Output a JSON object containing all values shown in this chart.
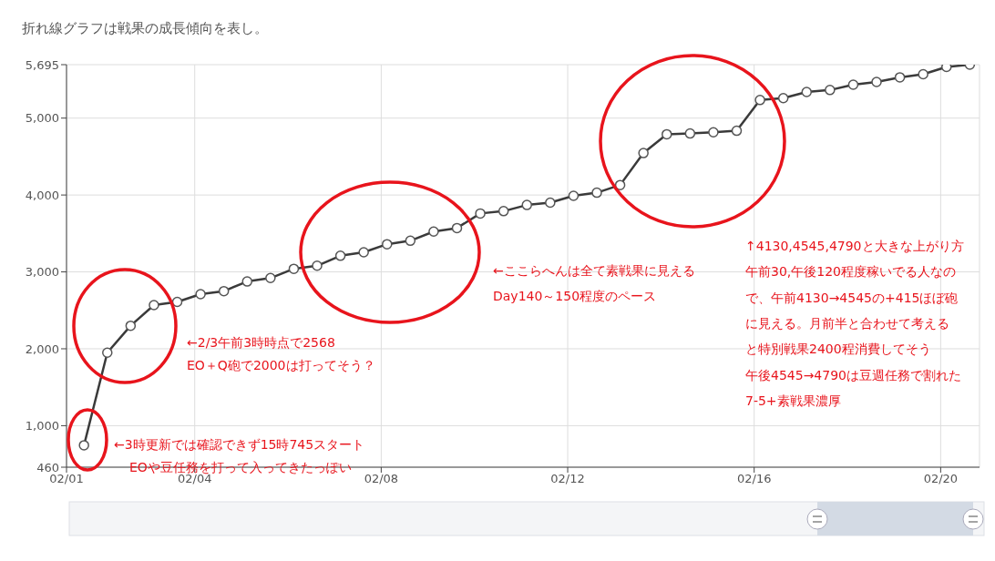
{
  "chart_data": {
    "type": "line",
    "title": "折れ線グラフは戦果の成長傾向を表し。",
    "x": [
      "--02-01T15:00",
      "--02-02T03:00",
      "--02-02T15:00",
      "--02-03T03:00",
      "--02-03T15:00",
      "--02-04T03:00",
      "--02-04T15:00",
      "--02-05T03:00",
      "--02-05T15:00",
      "--02-06T03:00",
      "--02-06T15:00",
      "--02-07T03:00",
      "--02-07T15:00",
      "--02-08T03:00",
      "--02-08T15:00",
      "--02-09T03:00",
      "--02-09T15:00",
      "--02-10T03:00",
      "--02-10T15:00",
      "--02-11T03:00",
      "--02-11T15:00",
      "--02-12T03:00",
      "--02-12T15:00",
      "--02-13T03:00",
      "--02-13T15:00",
      "--02-14T03:00",
      "--02-14T15:00",
      "--02-15T03:00",
      "--02-15T15:00",
      "--02-16T03:00",
      "--02-16T15:00",
      "--02-17T03:00",
      "--02-17T15:00",
      "--02-18T03:00",
      "--02-18T15:00",
      "--02-19T03:00",
      "--02-19T15:00",
      "--02-20T03:00",
      "--02-20T15:00"
    ],
    "series": [
      {
        "color": "#3a3a3a",
        "values": [
          745,
          1950,
          2300,
          2568,
          2610,
          2710,
          2750,
          2875,
          2920,
          3040,
          3080,
          3210,
          3255,
          3360,
          3405,
          3525,
          3570,
          3760,
          3790,
          3870,
          3900,
          3990,
          4030,
          4130,
          4545,
          4790,
          4800,
          4815,
          4835,
          5235,
          5260,
          5340,
          5365,
          5435,
          5470,
          5530,
          5570,
          5665,
          5695
        ]
      }
    ],
    "xlim": [
      "--02-01T06:00",
      "--02-20T20:00"
    ],
    "xticks": [
      {
        "value": "--02-01T06:00",
        "label": "02/01"
      },
      {
        "value": "--02-04",
        "label": "02/04"
      },
      {
        "value": "--02-08",
        "label": "02/08"
      },
      {
        "value": "--02-12",
        "label": "02/12"
      },
      {
        "value": "--02-16",
        "label": "02/16"
      },
      {
        "value": "--02-20",
        "label": "02/20"
      }
    ],
    "ylim": [
      460,
      5695
    ],
    "yticks": [
      460,
      {
        "value": 1000,
        "label": "1,000"
      },
      {
        "value": 2000,
        "label": "2,000"
      },
      {
        "value": 3000,
        "label": "3,000"
      },
      {
        "value": 4000,
        "label": "4,000"
      },
      {
        "value": 5000,
        "label": "5,000"
      },
      {
        "value": 5695,
        "label": "5,695"
      }
    ],
    "grid": true,
    "marker": "circle",
    "line_style": "solid",
    "annotations": [
      "←3時更新では確認できず15時745スタート\nEOや豆任務を打って入ってきたっぽい",
      "←2/3午前3時時点で2568\nEO＋Q砲で2000は打ってそう？",
      "←ここらへんは全て素戦果に見える\nDay140～150程度のペース",
      "↑4130,4545,4790と大きな上がり方午前30,午後120程度稼いでる人なので、午前4130→4545の+415ほぼ砲に見える。月前半と合わせて考えると特別戦果2400程消費してそう",
      "午後4545→4790は豆週任務で割れた7-5+素戦果濃厚"
    ]
  }
}
